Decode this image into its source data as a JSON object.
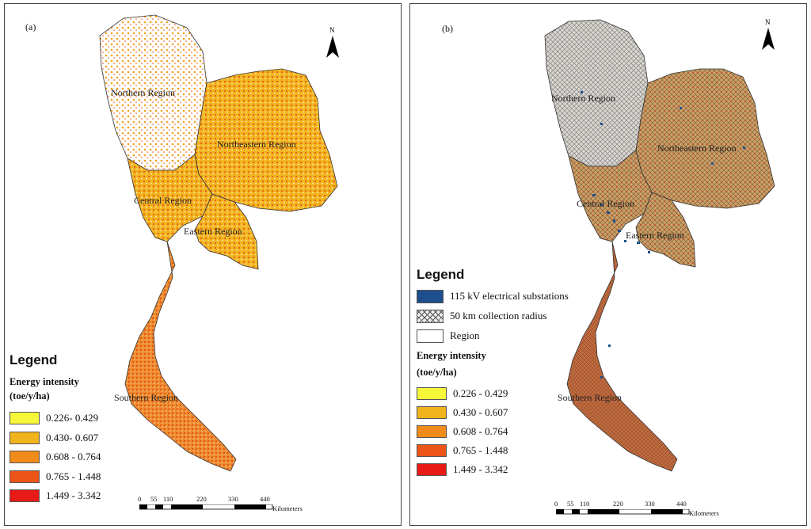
{
  "panel_a": {
    "label": "(a)",
    "north": "N",
    "regions": [
      "Northern Region",
      "Northeastern Region",
      "Central Region",
      "Eastern Region",
      "Southern Region"
    ],
    "legend": {
      "title": "Legend",
      "subtitle1": "Energy intensity",
      "subtitle2": "(toe/y/ha)",
      "classes": [
        {
          "label": "0.226- 0.429",
          "color": "#f7f73a"
        },
        {
          "label": "0.430- 0.607",
          "color": "#f0b31c"
        },
        {
          "label": "0.608 - 0.764",
          "color": "#f08a18"
        },
        {
          "label": "0.765 - 1.448",
          "color": "#ec5418"
        },
        {
          "label": "1.449 - 3.342",
          "color": "#e81a16"
        }
      ]
    },
    "scale": {
      "ticks": [
        "0",
        "55",
        "110",
        "220",
        "330",
        "440"
      ],
      "unit": "Kilometers"
    }
  },
  "panel_b": {
    "label": "(b)",
    "north": "N",
    "regions": [
      "Northern Region",
      "Northeastern Region",
      "Central Region",
      "Eastern Region",
      "Southern Region"
    ],
    "legend": {
      "title": "Legend",
      "items": [
        {
          "label": "115 kV electrical substations",
          "color": "#1f4e8c"
        },
        {
          "label": "50 km collection radius",
          "color": "hatch"
        },
        {
          "label": "Region",
          "color": "#ffffff"
        }
      ],
      "subtitle1": "Energy intensity",
      "subtitle2": "(toe/y/ha)",
      "classes": [
        {
          "label": "0.226 - 0.429",
          "color": "#f7f73a"
        },
        {
          "label": "0.430 - 0.607",
          "color": "#f0b31c"
        },
        {
          "label": "0.608 - 0.764",
          "color": "#f08a18"
        },
        {
          "label": "0.765 - 1.448",
          "color": "#ec5418"
        },
        {
          "label": "1.449 - 3.342",
          "color": "#e81a16"
        }
      ]
    },
    "scale": {
      "ticks": [
        "0",
        "55",
        "110",
        "220",
        "330",
        "440"
      ],
      "unit": "Kilometers"
    }
  }
}
